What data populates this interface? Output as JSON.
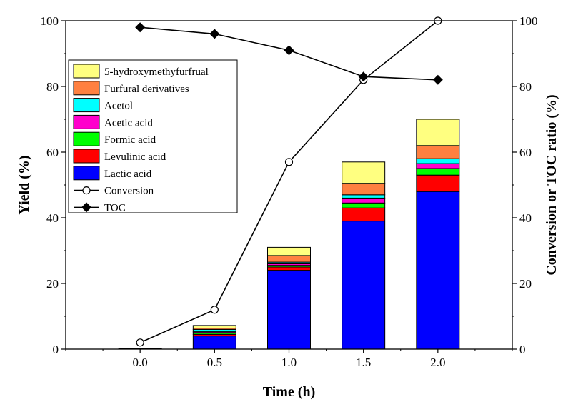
{
  "chart_data": {
    "type": "bar",
    "x": [
      0.0,
      0.5,
      1.0,
      1.5,
      2.0
    ],
    "x_tick_labels": [
      "0.0",
      "0.5",
      "1.0",
      "1.5",
      "2.0"
    ],
    "xlabel": "Time (h)",
    "ylabel_left": "Yield (%)",
    "ylabel_right": "Conversion or TOC ratio (%)",
    "ylim_left": [
      0,
      100
    ],
    "ylim_right": [
      0,
      100
    ],
    "y_ticks": [
      0,
      20,
      40,
      60,
      80,
      100
    ],
    "y_tick_labels": [
      "0",
      "20",
      "40",
      "60",
      "80",
      "100"
    ],
    "xlim": [
      -0.5,
      2.5
    ],
    "stacked": true,
    "grid": false,
    "legend_position": "upper-left",
    "bar_series": [
      {
        "name": "Lactic acid",
        "color": "#0000FF",
        "values": [
          0.2,
          4.0,
          24.0,
          39.0,
          48.0
        ]
      },
      {
        "name": "Levulinic acid",
        "color": "#FF0000",
        "values": [
          0.0,
          0.5,
          1.0,
          4.0,
          5.0
        ]
      },
      {
        "name": "Formic acid",
        "color": "#00FF00",
        "values": [
          0.0,
          0.5,
          0.5,
          1.5,
          2.0
        ]
      },
      {
        "name": "Acetic acid",
        "color": "#FF00CC",
        "values": [
          0.0,
          0.3,
          0.5,
          1.5,
          1.5
        ]
      },
      {
        "name": "Acetol",
        "color": "#00FFFF",
        "values": [
          0.0,
          0.7,
          0.5,
          1.0,
          1.5
        ]
      },
      {
        "name": "Furfural derivatives",
        "color": "#FF8040",
        "values": [
          0.0,
          0.4,
          2.0,
          3.5,
          4.0
        ]
      },
      {
        "name": "5-hydroxymethyfurfrual",
        "color": "#FFFF80",
        "values": [
          0.0,
          0.8,
          2.5,
          6.5,
          8.0
        ]
      }
    ],
    "line_series": [
      {
        "name": "Conversion",
        "marker": "open-circle",
        "axis": "right",
        "values": [
          2,
          12,
          57,
          82,
          100
        ]
      },
      {
        "name": "TOC",
        "marker": "filled-diamond",
        "axis": "right",
        "values": [
          98,
          96,
          91,
          83,
          82
        ]
      }
    ],
    "legend_order": [
      "5-hydroxymethyfurfrual",
      "Furfural derivatives",
      "Acetol",
      "Acetic acid",
      "Formic acid",
      "Levulinic acid",
      "Lactic acid",
      "Conversion",
      "TOC"
    ]
  }
}
